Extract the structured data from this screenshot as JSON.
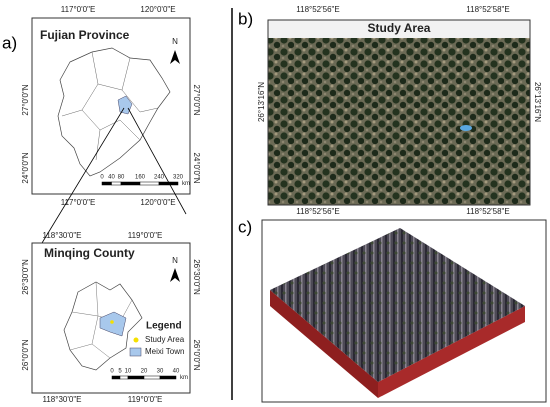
{
  "panels": {
    "a": {
      "label": "a)",
      "fujian": {
        "title": "Fujian Province",
        "top_ticks": [
          "117°0'0\"E",
          "120°0'0\"E"
        ],
        "bottom_ticks": [
          "117°0'0\"E",
          "120°0'0\"E"
        ],
        "left_ticks": [
          "27°0'0\"N",
          "24°0'0\"N"
        ],
        "right_ticks": [
          "27°0'0\"N",
          "24°0'0\"N"
        ],
        "north": "N",
        "scale_labels": [
          0,
          40,
          80,
          160,
          240,
          320
        ],
        "scale_unit": "km"
      },
      "minqing": {
        "title": "Minqing County",
        "top_ticks": [
          "118°30'0\"E",
          "119°0'0\"E"
        ],
        "bottom_ticks": [
          "118°30'0\"E",
          "119°0'0\"E"
        ],
        "left_ticks": [
          "26°30'0\"N",
          "26°0'0\"N"
        ],
        "right_ticks": [
          "26°30'0\"N",
          "26°0'0\"N"
        ],
        "north": "N",
        "scale_labels": [
          0,
          5,
          10,
          20,
          30,
          40
        ],
        "scale_unit": "km",
        "legend": {
          "title": "Legend",
          "items": [
            "Study Area",
            "Meixi Town"
          ]
        }
      }
    },
    "b": {
      "label": "b)",
      "title": "Study Area",
      "top_ticks": [
        "118°52'56\"E",
        "118°52'58\"E"
      ],
      "bottom_ticks": [
        "118°52'56\"E",
        "118°52'58\"E"
      ],
      "left_ticks": [
        "26°13'16\"N"
      ],
      "right_ticks": [
        "26°13'16\"N"
      ]
    },
    "c": {
      "label": "c)"
    }
  }
}
